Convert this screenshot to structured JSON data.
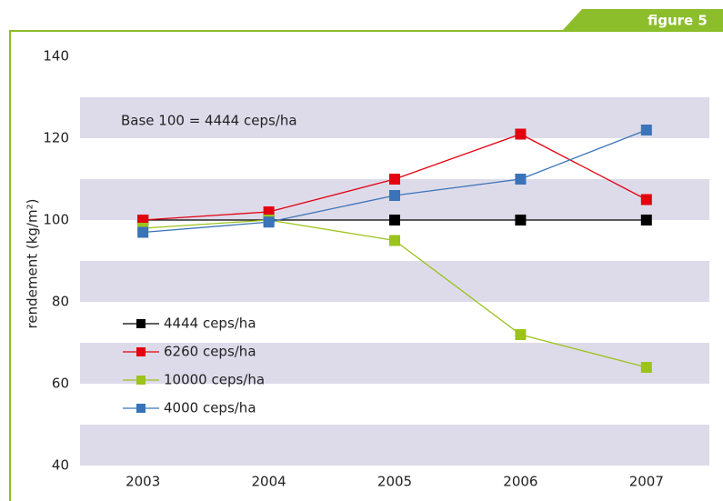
{
  "figure_label": "figure 5",
  "chart_data": {
    "type": "line",
    "ylabel": "rendement (kg/m²)",
    "annotation": "Base 100 = 4444 ceps/ha",
    "categories": [
      "2003",
      "2004",
      "2005",
      "2006",
      "2007"
    ],
    "series": [
      {
        "name": "4444 ceps/ha",
        "color": "#000000",
        "values": [
          100,
          100,
          100,
          100,
          100
        ]
      },
      {
        "name": "6260 ceps/ha",
        "color": "#e3000f",
        "values": [
          100,
          102,
          110,
          121,
          105
        ]
      },
      {
        "name": "10000 ceps/ha",
        "color": "#9bc31c",
        "values": [
          98,
          100,
          95,
          72,
          64
        ]
      },
      {
        "name": "4000 ceps/ha",
        "color": "#3a73b8",
        "values": [
          97,
          99.5,
          106,
          110,
          122
        ]
      }
    ],
    "ylim": [
      40,
      140
    ],
    "yticks": [
      40,
      60,
      80,
      100,
      120,
      140
    ],
    "band_color": "#dddbea",
    "legend": "left"
  }
}
